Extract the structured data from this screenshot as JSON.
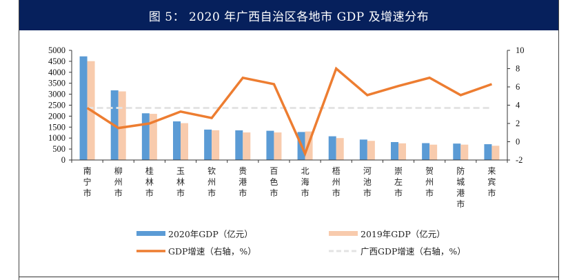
{
  "header": {
    "title": "图 5：  2020 年广西自治区各地市 GDP 及增速分布"
  },
  "colors": {
    "header_bg": "#06205c",
    "gdp2020": "#5b9bd5",
    "gdp2019": "#f8cbad",
    "growth": "#ed7d31",
    "avg_growth": "#e3e3e3"
  },
  "chart_data": {
    "type": "bar",
    "title": "2020 年广西自治区各地市 GDP 及增速分布",
    "categories": [
      "南宁市",
      "柳州市",
      "桂林市",
      "玉林市",
      "钦州市",
      "贵港市",
      "百色市",
      "北海市",
      "梧州市",
      "河池市",
      "崇左市",
      "贺州市",
      "防城港市",
      "来宾市"
    ],
    "series": [
      {
        "name": "2020年GDP（亿元）",
        "type": "bar",
        "axis": "left",
        "values": [
          4726,
          3176,
          2130,
          1761,
          1387,
          1352,
          1333,
          1277,
          1082,
          932,
          818,
          769,
          749,
          721
        ]
      },
      {
        "name": "2019年GDP（亿元）",
        "type": "bar",
        "axis": "left",
        "values": [
          4507,
          3128,
          2105,
          1680,
          1356,
          1257,
          1257,
          1300,
          1001,
          873,
          760,
          700,
          701,
          650
        ]
      },
      {
        "name": "GDP增速（右轴，%）",
        "type": "line",
        "axis": "right",
        "values": [
          3.7,
          1.5,
          2.0,
          3.3,
          2.6,
          7.0,
          6.3,
          -1.3,
          8.0,
          5.1,
          6.1,
          7.0,
          5.1,
          6.3
        ]
      },
      {
        "name": "广西GDP增速（右轴，%）",
        "type": "line-dashed",
        "axis": "right",
        "values": [
          3.7,
          3.7,
          3.7,
          3.7,
          3.7,
          3.7,
          3.7,
          3.7,
          3.7,
          3.7,
          3.7,
          3.7,
          3.7,
          3.7
        ]
      }
    ],
    "y_left": {
      "min": 0,
      "max": 5000,
      "step": 500,
      "ticks": [
        "0",
        "500",
        "1000",
        "1500",
        "2000",
        "2500",
        "3000",
        "3500",
        "4000",
        "4500",
        "5000"
      ]
    },
    "y_right": {
      "min": -2,
      "max": 10,
      "step": 2,
      "ticks": [
        "-2",
        "0",
        "2",
        "4",
        "6",
        "8",
        "10"
      ]
    },
    "xlabel": "",
    "ylabel": "",
    "grid": false,
    "legend_position": "bottom"
  },
  "legend": [
    {
      "label": "2020年GDP（亿元）",
      "kind": "bar",
      "color_key": "gdp2020"
    },
    {
      "label": "2019年GDP（亿元）",
      "kind": "bar",
      "color_key": "gdp2019"
    },
    {
      "label": "GDP增速（右轴，%）",
      "kind": "line",
      "color_key": "growth"
    },
    {
      "label": "广西GDP增速（右轴，%）",
      "kind": "dashed",
      "color_key": "avg_growth"
    }
  ]
}
